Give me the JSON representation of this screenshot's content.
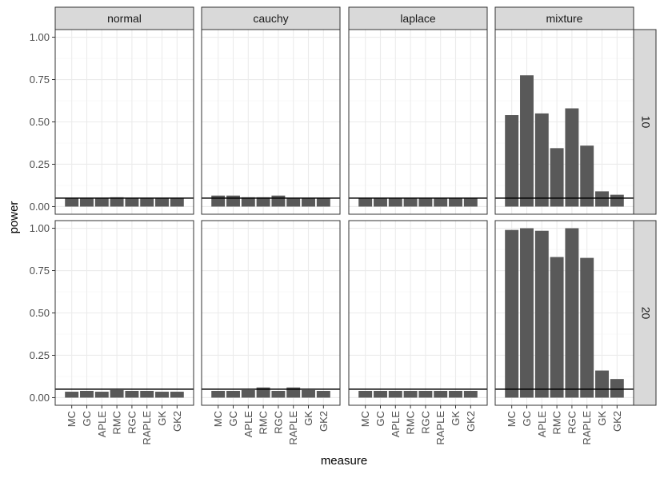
{
  "chart_data": {
    "type": "bar",
    "xlabel": "measure",
    "ylabel": "power",
    "ylim": [
      0,
      1.0
    ],
    "yticks": [
      "0.00",
      "0.25",
      "0.50",
      "0.75",
      "1.00"
    ],
    "categories": [
      "MC",
      "GC",
      "APLE",
      "RMC",
      "RGC",
      "RAPLE",
      "GK",
      "GK2"
    ],
    "columns": [
      "normal",
      "cauchy",
      "laplace",
      "mixture"
    ],
    "rows": [
      "10",
      "20"
    ],
    "reference_line": 0.05,
    "grid": true,
    "facets": [
      {
        "column": "normal",
        "row": "10",
        "values": [
          0.05,
          0.05,
          0.05,
          0.055,
          0.05,
          0.05,
          0.05,
          0.05
        ]
      },
      {
        "column": "cauchy",
        "row": "10",
        "values": [
          0.065,
          0.065,
          0.055,
          0.055,
          0.065,
          0.05,
          0.05,
          0.05
        ]
      },
      {
        "column": "laplace",
        "row": "10",
        "values": [
          0.05,
          0.05,
          0.05,
          0.05,
          0.05,
          0.05,
          0.05,
          0.05
        ]
      },
      {
        "column": "mixture",
        "row": "10",
        "values": [
          0.54,
          0.775,
          0.55,
          0.345,
          0.58,
          0.36,
          0.09,
          0.07
        ]
      },
      {
        "column": "normal",
        "row": "20",
        "values": [
          0.035,
          0.04,
          0.035,
          0.045,
          0.04,
          0.04,
          0.035,
          0.035
        ]
      },
      {
        "column": "cauchy",
        "row": "20",
        "values": [
          0.04,
          0.04,
          0.045,
          0.06,
          0.04,
          0.06,
          0.045,
          0.04
        ]
      },
      {
        "column": "laplace",
        "row": "20",
        "values": [
          0.04,
          0.04,
          0.04,
          0.04,
          0.04,
          0.04,
          0.04,
          0.04
        ]
      },
      {
        "column": "mixture",
        "row": "20",
        "values": [
          0.99,
          1.0,
          0.985,
          0.83,
          1.0,
          0.825,
          0.16,
          0.11
        ]
      }
    ]
  }
}
